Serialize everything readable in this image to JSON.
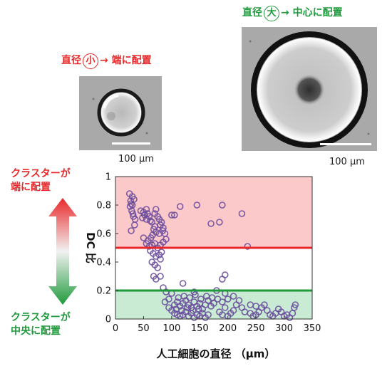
{
  "captions": {
    "small": {
      "pre": "直径",
      "circled": "小",
      "post": "→ 端に配置"
    },
    "large": {
      "pre": "直径",
      "circled": "大",
      "post": "→ 中心に配置"
    }
  },
  "scale_bars": {
    "small": "100 μm",
    "large": "100 μm"
  },
  "side_labels": {
    "top": [
      "クラスターが",
      "端に配置"
    ],
    "bottom": [
      "クラスターが",
      "中央に配置"
    ]
  },
  "colors": {
    "red": "#e8282a",
    "green": "#1f9a3b",
    "marker": "#6a4c9c",
    "red_band": "#fbc9ca",
    "green_band": "#c9ebd4"
  },
  "chart_data": {
    "type": "scatter",
    "xlabel": "人工細胞の直径 （μm）",
    "ylabel": "DC 比",
    "xlim": [
      0,
      350
    ],
    "ylim": [
      0,
      1
    ],
    "xticks": [
      "0",
      "50",
      "100",
      "150",
      "200",
      "250",
      "300",
      "350"
    ],
    "yticks": [
      "0",
      "0.2",
      "0.4",
      "0.6",
      "0.8",
      "1"
    ],
    "thresholds": [
      {
        "y": 0.5,
        "color": "#e8282a"
      },
      {
        "y": 0.2,
        "color": "#1f9a3b"
      }
    ],
    "bands": [
      {
        "from": 0.5,
        "to": 1.0,
        "color": "#fbc9ca"
      },
      {
        "from": 0.0,
        "to": 0.2,
        "color": "#c9ebd4"
      }
    ],
    "points": [
      [
        25,
        0.88
      ],
      [
        27,
        0.83
      ],
      [
        28,
        0.81
      ],
      [
        30,
        0.8
      ],
      [
        29,
        0.76
      ],
      [
        31,
        0.74
      ],
      [
        32,
        0.72
      ],
      [
        26,
        0.79
      ],
      [
        33,
        0.84
      ],
      [
        30,
        0.86
      ],
      [
        35,
        0.7
      ],
      [
        34,
        0.66
      ],
      [
        28,
        0.62
      ],
      [
        45,
        0.76
      ],
      [
        50,
        0.75
      ],
      [
        52,
        0.73
      ],
      [
        48,
        0.71
      ],
      [
        55,
        0.77
      ],
      [
        57,
        0.74
      ],
      [
        60,
        0.72
      ],
      [
        55,
        0.7
      ],
      [
        62,
        0.69
      ],
      [
        65,
        0.68
      ],
      [
        70,
        0.74
      ],
      [
        72,
        0.77
      ],
      [
        75,
        0.72
      ],
      [
        78,
        0.7
      ],
      [
        80,
        0.66
      ],
      [
        82,
        0.68
      ],
      [
        85,
        0.64
      ],
      [
        70,
        0.65
      ],
      [
        68,
        0.63
      ],
      [
        72,
        0.61
      ],
      [
        66,
        0.59
      ],
      [
        78,
        0.6
      ],
      [
        84,
        0.62
      ],
      [
        88,
        0.6
      ],
      [
        63,
        0.57
      ],
      [
        58,
        0.55
      ],
      [
        55,
        0.53
      ],
      [
        50,
        0.57
      ],
      [
        60,
        0.51
      ],
      [
        65,
        0.52
      ],
      [
        70,
        0.53
      ],
      [
        75,
        0.5
      ],
      [
        80,
        0.52
      ],
      [
        85,
        0.54
      ],
      [
        90,
        0.56
      ],
      [
        62,
        0.48
      ],
      [
        67,
        0.46
      ],
      [
        72,
        0.44
      ],
      [
        78,
        0.45
      ],
      [
        82,
        0.47
      ],
      [
        65,
        0.4
      ],
      [
        70,
        0.38
      ],
      [
        75,
        0.36
      ],
      [
        80,
        0.42
      ],
      [
        68,
        0.3
      ],
      [
        72,
        0.28
      ],
      [
        80,
        0.3
      ],
      [
        85,
        0.22
      ],
      [
        90,
        0.19
      ],
      [
        95,
        0.14
      ],
      [
        100,
        0.18
      ],
      [
        88,
        0.12
      ],
      [
        95,
        0.08
      ],
      [
        100,
        0.06
      ],
      [
        105,
        0.04
      ],
      [
        110,
        0.03
      ],
      [
        115,
        0.02
      ],
      [
        120,
        0.03
      ],
      [
        125,
        0.05
      ],
      [
        130,
        0.02
      ],
      [
        135,
        0.04
      ],
      [
        140,
        0.01
      ],
      [
        145,
        0.03
      ],
      [
        150,
        0.02
      ],
      [
        155,
        0.04
      ],
      [
        160,
        0.01
      ],
      [
        165,
        0.03
      ],
      [
        105,
        0.1
      ],
      [
        110,
        0.12
      ],
      [
        115,
        0.09
      ],
      [
        120,
        0.11
      ],
      [
        125,
        0.13
      ],
      [
        130,
        0.1
      ],
      [
        135,
        0.08
      ],
      [
        140,
        0.12
      ],
      [
        145,
        0.09
      ],
      [
        150,
        0.11
      ],
      [
        155,
        0.07
      ],
      [
        160,
        0.1
      ],
      [
        165,
        0.13
      ],
      [
        170,
        0.09
      ],
      [
        175,
        0.11
      ],
      [
        108,
        0.07
      ],
      [
        118,
        0.06
      ],
      [
        128,
        0.08
      ],
      [
        138,
        0.06
      ],
      [
        148,
        0.07
      ],
      [
        112,
        0.15
      ],
      [
        122,
        0.16
      ],
      [
        132,
        0.15
      ],
      [
        142,
        0.17
      ],
      [
        152,
        0.14
      ],
      [
        162,
        0.16
      ],
      [
        172,
        0.15
      ],
      [
        182,
        0.14
      ],
      [
        190,
        0.12
      ],
      [
        195,
        0.08
      ],
      [
        185,
        0.05
      ],
      [
        190,
        0.03
      ],
      [
        200,
        0.02
      ],
      [
        205,
        0.04
      ],
      [
        210,
        0.06
      ],
      [
        215,
        0.1
      ],
      [
        220,
        0.13
      ],
      [
        225,
        0.08
      ],
      [
        230,
        0.05
      ],
      [
        200,
        0.14
      ],
      [
        210,
        0.16
      ],
      [
        195,
        0.18
      ],
      [
        240,
        0.04
      ],
      [
        245,
        0.02
      ],
      [
        250,
        0.03
      ],
      [
        255,
        0.05
      ],
      [
        260,
        0.08
      ],
      [
        265,
        0.1
      ],
      [
        270,
        0.06
      ],
      [
        275,
        0.03
      ],
      [
        280,
        0.02
      ],
      [
        285,
        0.04
      ],
      [
        290,
        0.07
      ],
      [
        295,
        0.05
      ],
      [
        300,
        0.02
      ],
      [
        305,
        0.03
      ],
      [
        310,
        0.01
      ],
      [
        315,
        0.04
      ],
      [
        320,
        0.1
      ],
      [
        318,
        0.08
      ],
      [
        100,
        0.73
      ],
      [
        105,
        0.73
      ],
      [
        115,
        0.79
      ],
      [
        145,
        0.8
      ],
      [
        170,
        0.67
      ],
      [
        185,
        0.68
      ],
      [
        190,
        0.8
      ],
      [
        195,
        0.31
      ],
      [
        190,
        0.28
      ],
      [
        225,
        0.74
      ],
      [
        235,
        0.51
      ],
      [
        180,
        0.2
      ],
      [
        240,
        0.1
      ],
      [
        250,
        0.09
      ],
      [
        120,
        0.25
      ],
      [
        140,
        0.19
      ]
    ]
  }
}
